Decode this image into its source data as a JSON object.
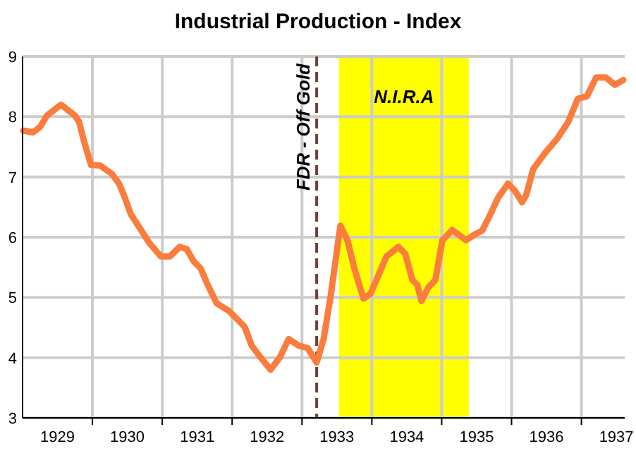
{
  "chart_data": {
    "type": "line",
    "title": "Industrial Production - Index",
    "x": [
      1929.01,
      1929.15,
      1929.25,
      1929.35,
      1929.55,
      1929.75,
      1929.81,
      1929.88,
      1929.98,
      1930.11,
      1930.28,
      1930.38,
      1930.45,
      1930.55,
      1930.68,
      1930.81,
      1930.98,
      1931.11,
      1931.25,
      1931.35,
      1931.45,
      1931.55,
      1931.65,
      1931.78,
      1931.95,
      1932.08,
      1932.18,
      1932.28,
      1932.41,
      1932.55,
      1932.68,
      1932.81,
      1932.95,
      1933.08,
      1933.21,
      1933.31,
      1933.41,
      1933.55,
      1933.65,
      1933.75,
      1933.88,
      1933.98,
      1934.08,
      1934.21,
      1934.38,
      1934.48,
      1934.58,
      1934.65,
      1934.71,
      1934.81,
      1934.91,
      1935.01,
      1935.15,
      1935.35,
      1935.45,
      1935.58,
      1935.68,
      1935.81,
      1935.95,
      1936.05,
      1936.15,
      1936.21,
      1936.31,
      1936.48,
      1936.65,
      1936.81,
      1936.95,
      1937.08,
      1937.21,
      1937.35,
      1937.48,
      1937.6
    ],
    "series": [
      {
        "color": "#fb7d3e",
        "values": [
          7.77,
          7.74,
          7.83,
          8.02,
          8.2,
          8.02,
          7.91,
          7.59,
          7.2,
          7.19,
          7.05,
          6.89,
          6.7,
          6.38,
          6.15,
          5.91,
          5.68,
          5.68,
          5.84,
          5.8,
          5.6,
          5.48,
          5.21,
          4.9,
          4.78,
          4.63,
          4.51,
          4.2,
          4.0,
          3.8,
          4.0,
          4.31,
          4.2,
          4.16,
          3.92,
          4.31,
          5.02,
          6.19,
          5.95,
          5.48,
          4.98,
          5.06,
          5.33,
          5.68,
          5.84,
          5.72,
          5.29,
          5.21,
          4.94,
          5.17,
          5.29,
          5.95,
          6.12,
          5.95,
          6.03,
          6.11,
          6.34,
          6.66,
          6.89,
          6.77,
          6.58,
          6.7,
          7.13,
          7.4,
          7.63,
          7.91,
          8.3,
          8.34,
          8.65,
          8.65,
          8.53,
          8.61
        ]
      }
    ],
    "xlim": [
      1929,
      1937.62
    ],
    "xticks": [
      {
        "value": 1929.5,
        "label": "1929"
      },
      {
        "value": 1930,
        "label": null
      },
      {
        "value": 1930.5,
        "label": "1930"
      },
      {
        "value": 1931,
        "label": null
      },
      {
        "value": 1931.5,
        "label": "1931"
      },
      {
        "value": 1932,
        "label": null
      },
      {
        "value": 1932.5,
        "label": "1932"
      },
      {
        "value": 1933,
        "label": null
      },
      {
        "value": 1933.5,
        "label": "1933"
      },
      {
        "value": 1934,
        "label": null
      },
      {
        "value": 1934.5,
        "label": "1934"
      },
      {
        "value": 1935,
        "label": null
      },
      {
        "value": 1935.5,
        "label": "1935"
      },
      {
        "value": 1936,
        "label": null
      },
      {
        "value": 1936.5,
        "label": "1936"
      },
      {
        "value": 1937,
        "label": null
      },
      {
        "value": 1937.5,
        "label": "1937"
      }
    ],
    "ylim": [
      3,
      9
    ],
    "yticks": [
      3,
      4,
      5,
      6,
      7,
      8,
      9
    ],
    "grid": true,
    "ref_lines": [
      {
        "axis": "x",
        "value": 1933.21,
        "label": "FDR - Off Gold",
        "color": "#7b3b3b",
        "line_style": "dashed"
      }
    ],
    "bands": [
      {
        "axis": "x",
        "from": 1933.53,
        "to": 1935.39,
        "label": "N.I.R.A",
        "color": "#ffff00"
      }
    ]
  }
}
